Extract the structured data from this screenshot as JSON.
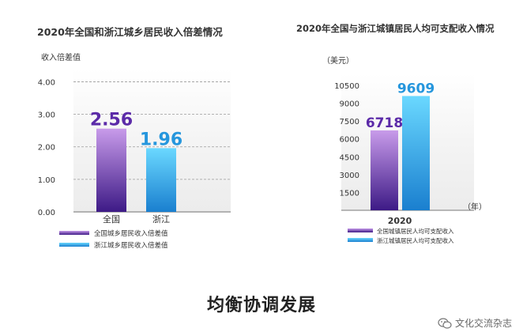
{
  "colors": {
    "purple_top": "#c89bea",
    "purple_bottom": "#3d1a86",
    "blue_top": "#6ad8ff",
    "blue_bottom": "#1a7fcf",
    "purple_value": "#5b2aa8",
    "blue_value": "#2596dd"
  },
  "chart_data": [
    {
      "type": "bar",
      "title": "2020年全国和浙江城乡居民收入倍差情况",
      "ylabel": "收入倍差值",
      "xlabel": "",
      "categories": [
        "全国",
        "浙江"
      ],
      "values": [
        2.56,
        1.96
      ],
      "value_labels": [
        "2.56",
        "1.96"
      ],
      "yticks": [
        "0.00",
        "1.00",
        "2.00",
        "3.00",
        "4.00"
      ],
      "ytick_values": [
        0,
        1,
        2,
        3,
        4
      ],
      "ylim": [
        0,
        4.4
      ],
      "grid": true,
      "legend": [
        {
          "label": "全国城乡居民收入倍差值",
          "color": "purple"
        },
        {
          "label": "浙江城乡居民收入倍差值",
          "color": "blue"
        }
      ]
    },
    {
      "type": "bar",
      "title": "2020年全国与浙江城镇居民人均可支配收入情况",
      "ylabel": "（美元）",
      "xlabel": "（年）",
      "categories": [
        "2020"
      ],
      "series": [
        {
          "name": "全国城镇居民人均可支配收入",
          "values": [
            6718
          ],
          "label": "6718"
        },
        {
          "name": "浙江城镇居民人均可支配收入",
          "values": [
            9609
          ],
          "label": "9609"
        }
      ],
      "yticks": [
        "1500",
        "3000",
        "4500",
        "6000",
        "7500",
        "9000",
        "10500"
      ],
      "ytick_values": [
        1500,
        3000,
        4500,
        6000,
        7500,
        9000,
        10500
      ],
      "ylim": [
        0,
        11500
      ],
      "grid": false,
      "legend": [
        {
          "label": "全国城镇居民人均可支配收入",
          "color": "purple"
        },
        {
          "label": "浙江城镇居民人均可支配收入",
          "color": "blue"
        }
      ]
    }
  ],
  "caption": "均衡协调发展",
  "watermark": "文化交流杂志"
}
